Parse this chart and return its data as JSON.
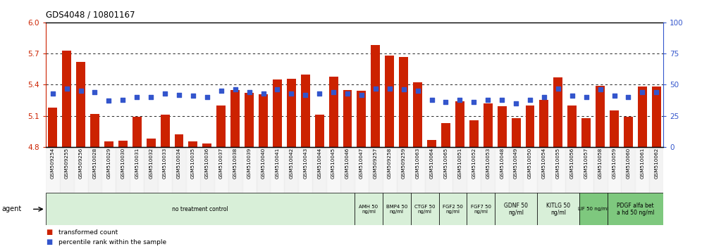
{
  "title": "GDS4048 / 10801167",
  "bar_bottom": 4.8,
  "ylim_left": [
    4.8,
    6.0
  ],
  "ylim_right": [
    0,
    100
  ],
  "yticks_left": [
    4.8,
    5.1,
    5.4,
    5.7,
    6.0
  ],
  "yticks_right": [
    0,
    25,
    50,
    75,
    100
  ],
  "samples": [
    "GSM509254",
    "GSM509255",
    "GSM509256",
    "GSM510028",
    "GSM510029",
    "GSM510030",
    "GSM510031",
    "GSM510032",
    "GSM510033",
    "GSM510034",
    "GSM510035",
    "GSM510036",
    "GSM510037",
    "GSM510038",
    "GSM510039",
    "GSM510040",
    "GSM510041",
    "GSM510042",
    "GSM510043",
    "GSM510044",
    "GSM510045",
    "GSM510046",
    "GSM510047",
    "GSM509257",
    "GSM509258",
    "GSM509259",
    "GSM510063",
    "GSM510064",
    "GSM510065",
    "GSM510051",
    "GSM510052",
    "GSM510053",
    "GSM510048",
    "GSM510049",
    "GSM510050",
    "GSM510054",
    "GSM510055",
    "GSM510056",
    "GSM510057",
    "GSM510058",
    "GSM510059",
    "GSM510060",
    "GSM510061",
    "GSM510062"
  ],
  "bar_values": [
    5.18,
    5.73,
    5.62,
    5.12,
    4.85,
    4.86,
    5.09,
    4.88,
    5.11,
    4.92,
    4.85,
    4.83,
    5.2,
    5.35,
    5.32,
    5.31,
    5.45,
    5.46,
    5.5,
    5.11,
    5.48,
    5.35,
    5.34,
    5.78,
    5.68,
    5.67,
    5.42,
    4.87,
    5.03,
    5.24,
    5.06,
    5.22,
    5.19,
    5.08,
    5.2,
    5.25,
    5.47,
    5.2,
    5.08,
    5.39,
    5.15,
    5.09,
    5.38,
    5.38
  ],
  "percentile_values": [
    43,
    47,
    45,
    44,
    37,
    38,
    40,
    40,
    43,
    42,
    41,
    40,
    45,
    46,
    44,
    43,
    46,
    43,
    42,
    43,
    44,
    43,
    42,
    47,
    47,
    46,
    45,
    38,
    36,
    38,
    36,
    38,
    38,
    35,
    38,
    40,
    47,
    41,
    40,
    46,
    41,
    40,
    44,
    44
  ],
  "agent_groups": [
    {
      "label": "no treatment control",
      "start": 0,
      "end": 22,
      "color": "#d8efd8"
    },
    {
      "label": "AMH 50\nng/ml",
      "start": 22,
      "end": 24,
      "color": "#d8efd8"
    },
    {
      "label": "BMP4 50\nng/ml",
      "start": 24,
      "end": 26,
      "color": "#d8efd8"
    },
    {
      "label": "CTGF 50\nng/ml",
      "start": 26,
      "end": 28,
      "color": "#d8efd8"
    },
    {
      "label": "FGF2 50\nng/ml",
      "start": 28,
      "end": 30,
      "color": "#d8efd8"
    },
    {
      "label": "FGF7 50\nng/ml",
      "start": 30,
      "end": 32,
      "color": "#d8efd8"
    },
    {
      "label": "GDNF 50\nng/ml",
      "start": 32,
      "end": 35,
      "color": "#d8efd8"
    },
    {
      "label": "KITLG 50\nng/ml",
      "start": 35,
      "end": 38,
      "color": "#d8efd8"
    },
    {
      "label": "LIF 50 ng/ml",
      "start": 38,
      "end": 40,
      "color": "#7ec87e"
    },
    {
      "label": "PDGF alfa bet\na hd 50 ng/ml",
      "start": 40,
      "end": 44,
      "color": "#7ec87e"
    }
  ],
  "bar_color": "#cc2200",
  "dot_color": "#3355cc",
  "left_axis_color": "#cc2200",
  "right_axis_color": "#3355cc",
  "legend_bar_label": "transformed count",
  "legend_dot_label": "percentile rank within the sample"
}
